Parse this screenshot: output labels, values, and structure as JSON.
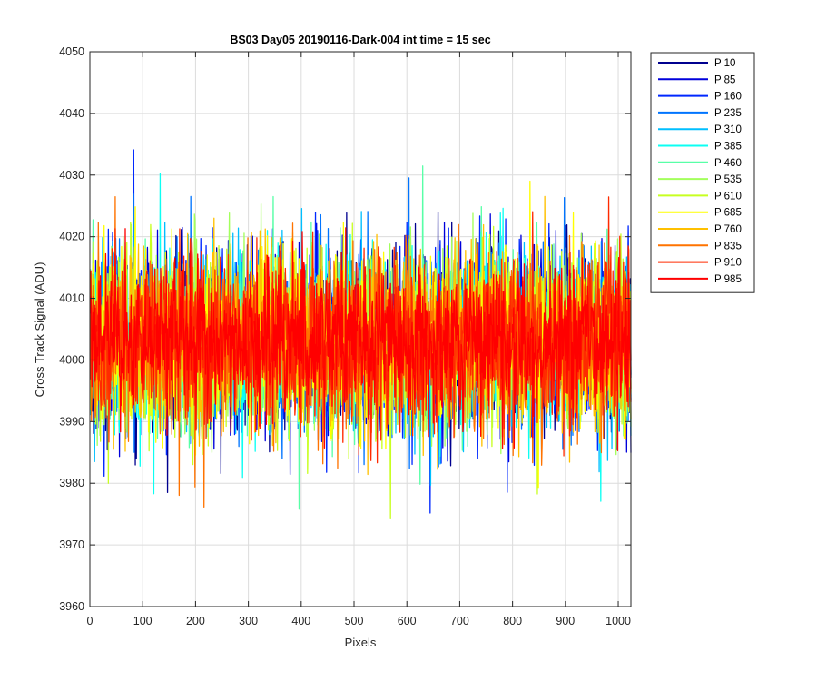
{
  "chart_data": {
    "type": "line",
    "title": "BS03 Day05 20190116-Dark-004 int time = 15 sec",
    "xlabel": "Pixels",
    "ylabel": "Cross Track Signal (ADU)",
    "xlim": [
      0,
      1024
    ],
    "ylim": [
      3960,
      4050
    ],
    "xticks": [
      0,
      100,
      200,
      300,
      400,
      500,
      600,
      700,
      800,
      900,
      1000
    ],
    "yticks": [
      3960,
      3970,
      3980,
      3990,
      4000,
      4010,
      4020,
      4030,
      4040,
      4050
    ],
    "grid": true,
    "legend_position": "outside-top-right",
    "series": [
      {
        "name": "P 10",
        "color": "#00008f",
        "sd": 7
      },
      {
        "name": "P 85",
        "color": "#0000db",
        "sd": 7
      },
      {
        "name": "P 160",
        "color": "#0028ff",
        "sd": 7
      },
      {
        "name": "P 235",
        "color": "#0074ff",
        "sd": 7
      },
      {
        "name": "P 310",
        "color": "#00bfff",
        "sd": 7
      },
      {
        "name": "P 385",
        "color": "#0cfff3",
        "sd": 7
      },
      {
        "name": "P 460",
        "color": "#58ffa7",
        "sd": 7
      },
      {
        "name": "P 535",
        "color": "#a3ff5c",
        "sd": 7
      },
      {
        "name": "P 610",
        "color": "#c8ff20",
        "sd": 7
      },
      {
        "name": "P 685",
        "color": "#ffff00",
        "sd": 7
      },
      {
        "name": "P 760",
        "color": "#ffc000",
        "sd": 7
      },
      {
        "name": "P 835",
        "color": "#ff7300",
        "sd": 7
      },
      {
        "name": "P 910",
        "color": "#ff2a00",
        "sd": 7
      },
      {
        "name": "P 985",
        "color": "#ff0000",
        "sd": 6
      }
    ],
    "series_summary": {
      "points_per_series": 1024,
      "approx_mean": 4003,
      "approx_min": 3966,
      "approx_max": 4044
    }
  }
}
